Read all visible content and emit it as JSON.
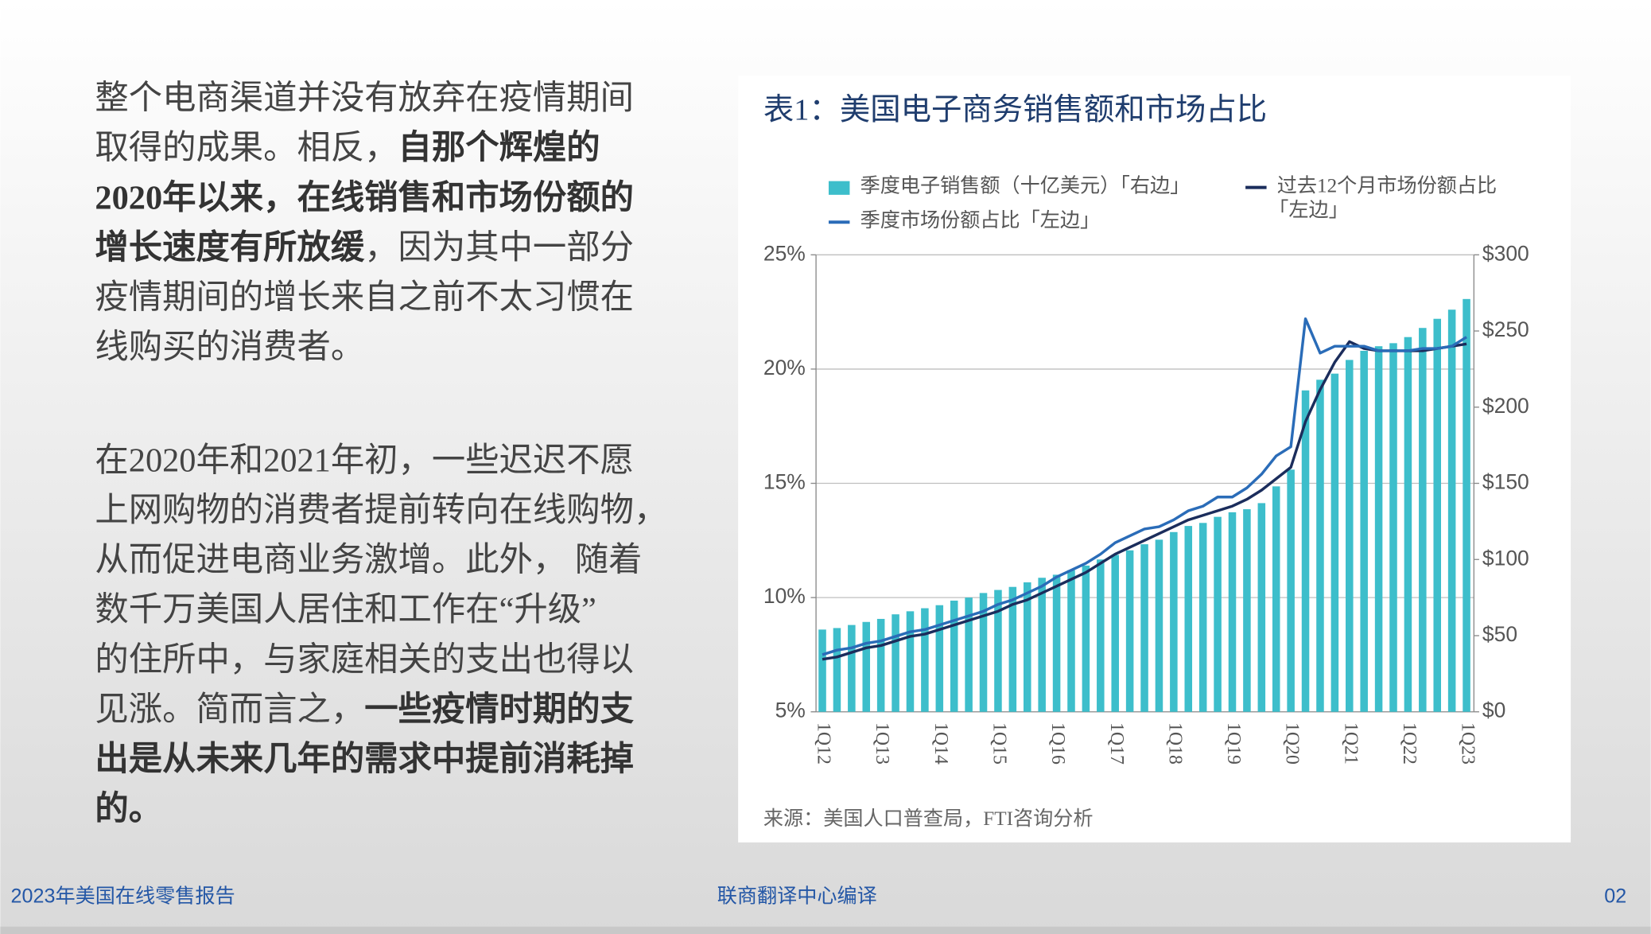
{
  "body": {
    "paragraphs": [
      {
        "lines": [
          [
            {
              "text": "整个电商渠道并没有放弃在疫情期间",
              "bold": false
            }
          ],
          [
            {
              "text": "取得的成果。相反，",
              "bold": false
            },
            {
              "text": "自那个辉煌的",
              "bold": true
            }
          ],
          [
            {
              "text": "2020年以来，在线销售和市场份额的",
              "bold": true
            }
          ],
          [
            {
              "text": "增长速度有所放缓",
              "bold": true
            },
            {
              "text": "，因为其中一部分",
              "bold": false
            }
          ],
          [
            {
              "text": "疫情期间的增长来自之前不太习惯在",
              "bold": false
            }
          ],
          [
            {
              "text": "线购买的消费者。",
              "bold": false
            }
          ]
        ]
      },
      {
        "lines": [
          [
            {
              "text": "在2020年和2021年初，一些迟迟不愿",
              "bold": false
            }
          ],
          [
            {
              "text": "上网购物的消费者提前转向在线购物，",
              "bold": false
            }
          ],
          [
            {
              "text": "从而促进电商业务激增。此外， 随着",
              "bold": false
            }
          ],
          [
            {
              "text": "数千万美国人居住和工作在“升级”",
              "bold": false
            }
          ],
          [
            {
              "text": "的住所中，与家庭相关的支出也得以",
              "bold": false
            }
          ],
          [
            {
              "text": "见涨。简而言之，",
              "bold": false
            },
            {
              "text": "一些疫情时期的支",
              "bold": true
            }
          ],
          [
            {
              "text": "出是从未来几年的需求中提前消耗掉",
              "bold": true
            }
          ],
          [
            {
              "text": "的。",
              "bold": true
            }
          ]
        ]
      }
    ]
  },
  "chart_data": {
    "type": "bar-line",
    "title": "表1：美国电子商务销售额和市场占比",
    "source": "来源：美国人口普查局，FTI咨询分析",
    "categories": [
      "1Q12",
      null,
      null,
      null,
      "1Q13",
      null,
      null,
      null,
      "1Q14",
      null,
      null,
      null,
      "1Q15",
      null,
      null,
      null,
      "1Q16",
      null,
      null,
      null,
      "1Q17",
      null,
      null,
      null,
      "1Q18",
      null,
      null,
      null,
      "1Q19",
      null,
      null,
      null,
      "1Q20",
      null,
      null,
      null,
      "1Q21",
      null,
      null,
      null,
      "1Q22",
      null,
      null,
      null,
      "1Q23"
    ],
    "series": [
      {
        "name": "季度电子销售额（十亿美元）「右边」",
        "type": "bar",
        "axis": "y2",
        "color": "#3dbecb",
        "values": [
          54,
          55,
          57,
          59,
          61,
          64,
          66,
          68,
          70,
          73,
          75,
          78,
          80,
          82,
          85,
          88,
          90,
          93,
          96,
          100,
          103,
          106,
          110,
          113,
          118,
          122,
          124,
          128,
          131,
          133,
          137,
          148,
          159,
          211,
          218,
          222,
          231,
          237,
          240,
          242,
          246,
          252,
          258,
          264,
          271
        ]
      },
      {
        "name": "过去12个月市场份额占比「左边」",
        "type": "line",
        "color": "#1b2d5c",
        "values": [
          7.3,
          7.4,
          7.6,
          7.8,
          7.9,
          8.1,
          8.3,
          8.4,
          8.6,
          8.8,
          9.0,
          9.2,
          9.4,
          9.7,
          9.9,
          10.2,
          10.5,
          10.8,
          11.1,
          11.5,
          11.9,
          12.2,
          12.5,
          12.8,
          13.1,
          13.4,
          13.6,
          13.8,
          14.0,
          14.3,
          14.7,
          15.2,
          15.7,
          17.7,
          19.1,
          20.3,
          21.2,
          20.9,
          20.8,
          20.8,
          20.8,
          20.8,
          20.9,
          21.0,
          21.1
        ]
      },
      {
        "name": "季度市场份额占比「左边」",
        "type": "line",
        "color": "#2a6cb8",
        "values": [
          7.5,
          7.7,
          7.8,
          8.0,
          8.1,
          8.3,
          8.5,
          8.6,
          8.8,
          9.0,
          9.2,
          9.4,
          9.7,
          9.9,
          10.2,
          10.5,
          10.9,
          11.2,
          11.5,
          11.9,
          12.4,
          12.7,
          13.0,
          13.1,
          13.4,
          13.8,
          14.0,
          14.4,
          14.4,
          14.8,
          15.4,
          16.2,
          16.6,
          22.2,
          20.7,
          21.0,
          21.0,
          21.0,
          20.8,
          20.8,
          20.8,
          20.9,
          20.9,
          21.0,
          21.4
        ]
      }
    ],
    "ylim": [
      5,
      25
    ],
    "yticks": [
      {
        "value": 5,
        "label": "5%"
      },
      {
        "value": 10,
        "label": "10%"
      },
      {
        "value": 15,
        "label": "15%"
      },
      {
        "value": 20,
        "label": "20%"
      },
      {
        "value": 25,
        "label": "25%"
      }
    ],
    "y2lim": [
      0,
      300
    ],
    "y2ticks": [
      {
        "value": 0,
        "label": "$0"
      },
      {
        "value": 50,
        "label": "$50"
      },
      {
        "value": 100,
        "label": "$100"
      },
      {
        "value": 150,
        "label": "$150"
      },
      {
        "value": 200,
        "label": "$200"
      },
      {
        "value": 250,
        "label": "$250"
      },
      {
        "value": 300,
        "label": "$300"
      }
    ],
    "grid": true
  },
  "footer": {
    "left": "2023年美国在线零售报告",
    "center": "联商翻译中心编译",
    "page": "02"
  }
}
